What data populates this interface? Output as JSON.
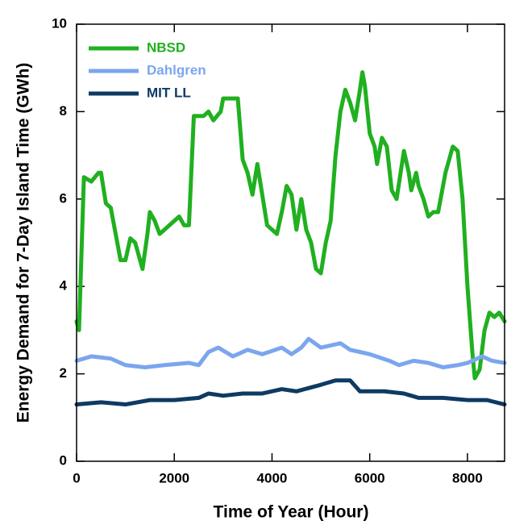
{
  "chart_data": {
    "type": "line",
    "xlabel": "Time of Year (Hour)",
    "ylabel": "Energy Demand for 7-Day Island Time (GWh)",
    "xlim": [
      0,
      8760
    ],
    "xticks": [
      0,
      2000,
      4000,
      6000,
      8000
    ],
    "ylim": [
      0,
      10
    ],
    "yticks": [
      0,
      2,
      4,
      6,
      8,
      10
    ],
    "legend": "upper left",
    "series": [
      {
        "name": "NBSD",
        "color": "#20b020",
        "x": [
          0,
          50,
          150,
          300,
          450,
          500,
          600,
          700,
          800,
          900,
          1000,
          1100,
          1200,
          1300,
          1350,
          1450,
          1500,
          1600,
          1700,
          1800,
          2000,
          2100,
          2200,
          2300,
          2400,
          2600,
          2700,
          2800,
          2950,
          3000,
          3300,
          3400,
          3500,
          3600,
          3700,
          3800,
          3900,
          4000,
          4100,
          4200,
          4300,
          4400,
          4500,
          4600,
          4700,
          4800,
          4900,
          5000,
          5100,
          5200,
          5300,
          5400,
          5500,
          5600,
          5700,
          5800,
          5850,
          5900,
          6000,
          6100,
          6150,
          6250,
          6350,
          6450,
          6550,
          6700,
          6800,
          6850,
          6950,
          7000,
          7100,
          7200,
          7300,
          7400,
          7550,
          7700,
          7800,
          7900,
          8000,
          8100,
          8150,
          8250,
          8350,
          8450,
          8550,
          8650,
          8760
        ],
        "values": [
          3.2,
          3.0,
          6.5,
          6.4,
          6.6,
          6.6,
          5.9,
          5.8,
          5.2,
          4.6,
          4.6,
          5.1,
          5.0,
          4.6,
          4.4,
          5.2,
          5.7,
          5.5,
          5.2,
          5.3,
          5.5,
          5.6,
          5.4,
          5.4,
          7.9,
          7.9,
          8.0,
          7.8,
          8.0,
          8.3,
          8.3,
          6.9,
          6.6,
          6.1,
          6.8,
          6.1,
          5.4,
          5.3,
          5.2,
          5.7,
          6.3,
          6.1,
          5.3,
          6.0,
          5.3,
          5.0,
          4.4,
          4.3,
          5.0,
          5.5,
          7.0,
          8.0,
          8.5,
          8.2,
          7.8,
          8.5,
          8.9,
          8.6,
          7.5,
          7.2,
          6.8,
          7.4,
          7.2,
          6.2,
          6.0,
          7.1,
          6.6,
          6.2,
          6.6,
          6.3,
          6.0,
          5.6,
          5.7,
          5.7,
          6.6,
          7.2,
          7.1,
          6.0,
          4.0,
          2.5,
          1.9,
          2.1,
          3.0,
          3.4,
          3.3,
          3.4,
          3.2
        ]
      },
      {
        "name": "Dahlgren",
        "color": "#7ba6ee",
        "x": [
          0,
          300,
          700,
          1000,
          1400,
          1800,
          2300,
          2500,
          2700,
          2900,
          3200,
          3500,
          3800,
          4200,
          4400,
          4600,
          4750,
          5000,
          5400,
          5600,
          5800,
          6000,
          6400,
          6600,
          6900,
          7200,
          7500,
          7800,
          8000,
          8300,
          8500,
          8760
        ],
        "values": [
          2.3,
          2.4,
          2.35,
          2.2,
          2.15,
          2.2,
          2.25,
          2.2,
          2.5,
          2.6,
          2.4,
          2.55,
          2.45,
          2.6,
          2.45,
          2.6,
          2.8,
          2.6,
          2.7,
          2.55,
          2.5,
          2.45,
          2.3,
          2.2,
          2.3,
          2.25,
          2.15,
          2.2,
          2.25,
          2.4,
          2.3,
          2.25
        ]
      },
      {
        "name": "MIT LL",
        "color": "#0e3a63",
        "x": [
          0,
          500,
          1000,
          1500,
          2000,
          2500,
          2700,
          3000,
          3400,
          3800,
          4200,
          4500,
          5000,
          5300,
          5600,
          5800,
          6300,
          6700,
          7000,
          7500,
          8000,
          8400,
          8760
        ],
        "values": [
          1.3,
          1.35,
          1.3,
          1.4,
          1.4,
          1.45,
          1.55,
          1.5,
          1.55,
          1.55,
          1.65,
          1.6,
          1.75,
          1.85,
          1.85,
          1.6,
          1.6,
          1.55,
          1.45,
          1.45,
          1.4,
          1.4,
          1.3
        ]
      }
    ]
  }
}
